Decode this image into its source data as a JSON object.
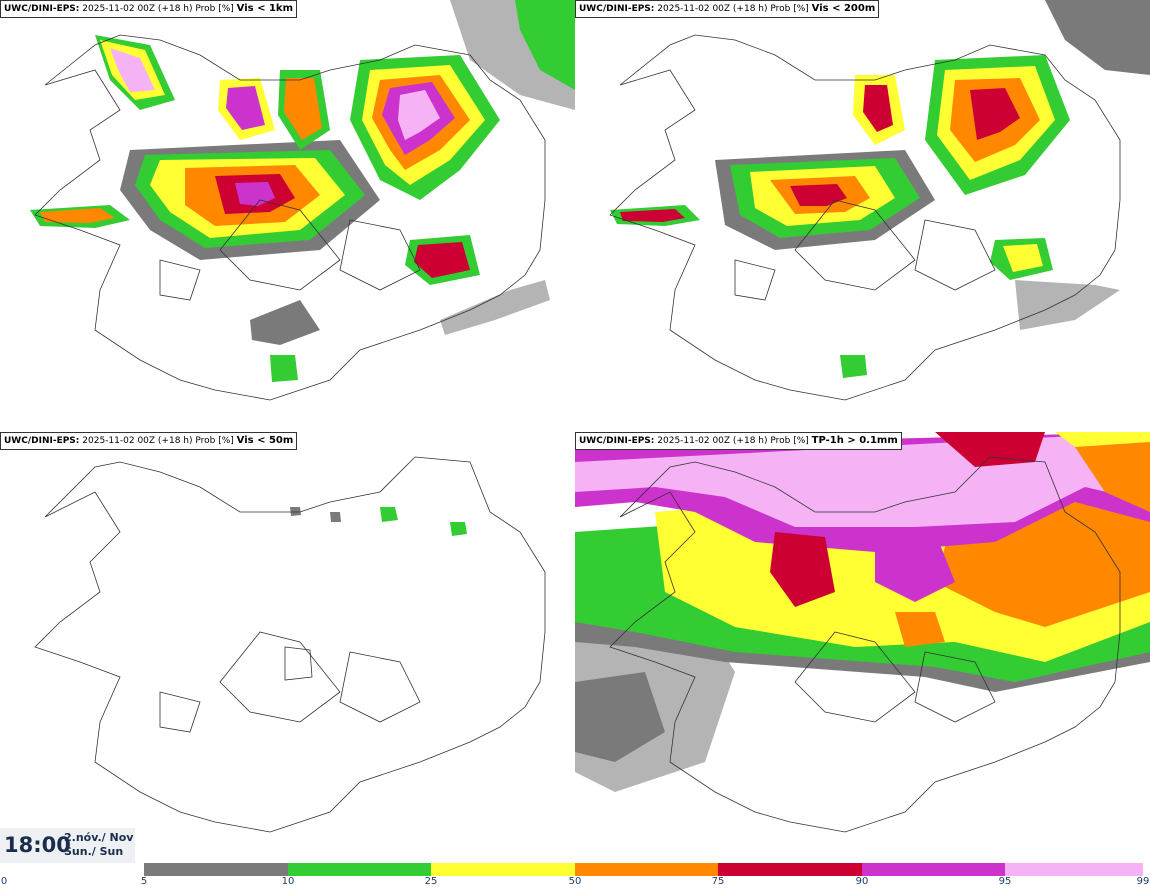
{
  "panels": [
    {
      "model": "UWC/DINI-EPS",
      "run": "2025-11-02 00Z (+18 h) Prob [%]",
      "field": "Vis < 1km"
    },
    {
      "model": "UWC/DINI-EPS",
      "run": "2025-11-02 00Z (+18 h) Prob [%]",
      "field": "Vis < 200m"
    },
    {
      "model": "UWC/DINI-EPS",
      "run": "2025-11-02 00Z (+18 h) Prob [%]",
      "field": "Vis < 50m"
    },
    {
      "model": "UWC/DINI-EPS",
      "run": "2025-11-02 00Z (+18 h) Prob [%]",
      "field": "TP-1h > 0.1mm"
    }
  ],
  "time": {
    "clock": "18:00",
    "date_line1": "2.nóv./ Nov",
    "date_line2": "Sun./ Sun"
  },
  "legend": {
    "ticks": [
      "0",
      "5",
      "10",
      "25",
      "50",
      "75",
      "90",
      "95",
      "99"
    ],
    "colors": [
      "#b4b4b4",
      "#7a7a7a",
      "#33cc33",
      "#ffff33",
      "#ff8800",
      "#cc0033",
      "#cc33cc",
      "#f5b3f5"
    ]
  }
}
